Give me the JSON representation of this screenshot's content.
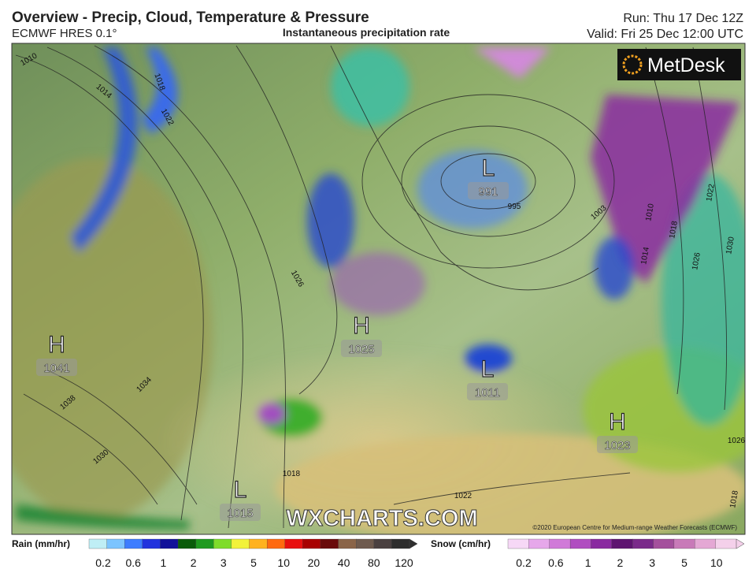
{
  "header": {
    "title": "Overview - Precip, Cloud, Temperature & Pressure",
    "model": "ECMWF HRES 0.1°",
    "subtitle": "Instantaneous precipitation rate",
    "run": "Run: Thu 17 Dec 12Z",
    "valid": "Valid: Fri 25 Dec 12:00 UTC"
  },
  "map": {
    "logo": "MetDesk",
    "watermark": "WXCHARTS.COM",
    "copyright": "©2020 European Centre for Medium-range Weather Forecasts (ECMWF)",
    "pressure_centers": [
      {
        "type": "H",
        "value": 1041
      },
      {
        "type": "H",
        "value": 1025
      },
      {
        "type": "L",
        "value": 991
      },
      {
        "type": "L",
        "value": 1011
      },
      {
        "type": "H",
        "value": 1023
      },
      {
        "type": "L",
        "value": 1015
      }
    ],
    "isobar_labels": [
      1010,
      1014,
      1018,
      1022,
      1026,
      1034,
      1038,
      1030,
      995,
      1003,
      1010,
      1014,
      1018,
      1022,
      1026,
      1030,
      1026,
      1018,
      1022,
      1018
    ]
  },
  "legend": {
    "rain": {
      "title": "Rain (mm/hr)",
      "ticks": [
        0.2,
        0.6,
        1,
        2,
        3,
        5,
        10,
        20,
        40,
        80,
        120
      ],
      "colors": [
        "#bfeef5",
        "#7cc4ff",
        "#3d7dff",
        "#2233dd",
        "#111199",
        "#0a5c0a",
        "#1f9a1f",
        "#7fdc2a",
        "#f2f23a",
        "#ffb21f",
        "#ff6a10",
        "#e81010",
        "#a80000",
        "#6a0a0a",
        "#8a6448",
        "#6e5a4e",
        "#4a4040",
        "#2e2e2e"
      ]
    },
    "snow": {
      "title": "Snow (cm/hr)",
      "ticks": [
        0.2,
        0.6,
        1,
        2,
        3,
        5,
        10
      ],
      "colors": [
        "#f6d8f6",
        "#e6a8ea",
        "#d07ad8",
        "#b04ec0",
        "#8a2aa0",
        "#5e1470",
        "#7a2a8a",
        "#a4509c",
        "#c87ab8",
        "#e4a8d4",
        "#f4d0ea"
      ]
    }
  }
}
